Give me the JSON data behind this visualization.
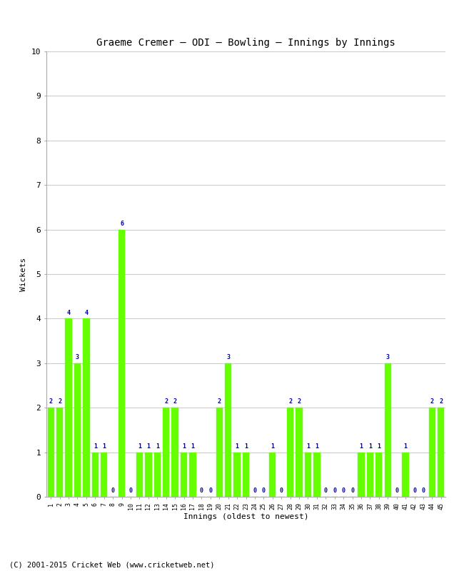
{
  "title": "Graeme Cremer – ODI – Bowling – Innings by Innings",
  "xlabel": "Innings (oldest to newest)",
  "ylabel": "Wickets",
  "bar_color": "#66ff00",
  "label_color": "#000099",
  "background_color": "#ffffff",
  "grid_color": "#cccccc",
  "ylim": [
    0,
    10
  ],
  "yticks": [
    0,
    1,
    2,
    3,
    4,
    5,
    6,
    7,
    8,
    9,
    10
  ],
  "footer": "(C) 2001-2015 Cricket Web (www.cricketweb.net)",
  "innings": [
    1,
    2,
    3,
    4,
    5,
    6,
    7,
    8,
    9,
    10,
    11,
    12,
    13,
    14,
    15,
    16,
    17,
    18,
    19,
    20,
    21,
    22,
    23,
    24,
    25,
    26,
    27,
    28,
    29,
    30,
    31,
    32,
    33,
    34,
    35,
    36,
    37,
    38,
    39,
    40,
    41,
    42,
    43,
    44,
    45
  ],
  "wickets": [
    2,
    2,
    4,
    3,
    4,
    1,
    1,
    0,
    6,
    0,
    1,
    1,
    1,
    2,
    2,
    1,
    1,
    0,
    0,
    2,
    3,
    1,
    1,
    0,
    0,
    1,
    0,
    2,
    2,
    1,
    1,
    0,
    0,
    0,
    0,
    1,
    1,
    1,
    3,
    0,
    1,
    0,
    0,
    2,
    2
  ]
}
